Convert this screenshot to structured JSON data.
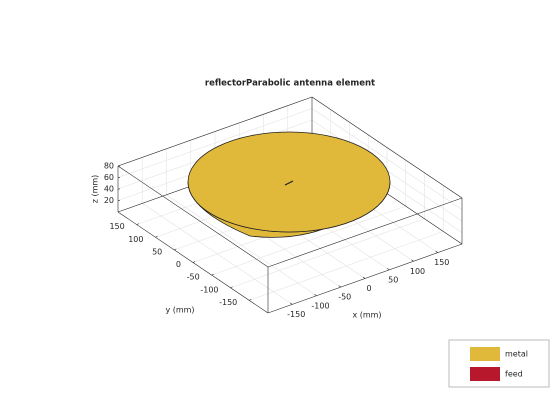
{
  "chart_data": {
    "type": "antenna3d",
    "title": "reflectorParabolic antenna element",
    "xlabel": "x (mm)",
    "ylabel": "y (mm)",
    "zlabel": "z (mm)",
    "xlim": [
      -200,
      200
    ],
    "ylim": [
      -200,
      200
    ],
    "zlim": [
      0,
      80
    ],
    "xticks": [
      -150,
      -100,
      -50,
      0,
      50,
      100,
      150
    ],
    "yticks": [
      -150,
      -100,
      -50,
      0,
      50,
      100,
      150
    ],
    "zticks": [
      20,
      40,
      60,
      80
    ],
    "grid": true,
    "legend": [
      {
        "name": "metal",
        "color": "#e0b93b"
      },
      {
        "name": "feed",
        "color": "#b8182c"
      }
    ]
  }
}
